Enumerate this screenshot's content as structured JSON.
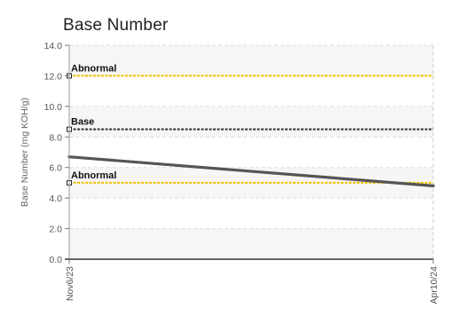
{
  "chart_data": {
    "type": "line",
    "title": "Base Number",
    "xlabel": "",
    "ylabel": "Base Number (mg KOH/g)",
    "ylim": [
      0,
      14
    ],
    "y_ticks": [
      "0.0",
      "2.0",
      "4.0",
      "6.0",
      "8.0",
      "10.0",
      "12.0",
      "14.0"
    ],
    "y_tick_values": [
      0,
      2,
      4,
      6,
      8,
      10,
      12,
      14
    ],
    "categories": [
      "Nov6/23",
      "Apr10/24"
    ],
    "series": [
      {
        "values": [
          6.7,
          4.8
        ],
        "color": "#555555"
      }
    ],
    "reference_lines": [
      {
        "label": "Abnormal",
        "value": 12.0,
        "color": "#f2c200"
      },
      {
        "label": "Base",
        "value": 8.5,
        "color": "#333333"
      },
      {
        "label": "Abnormal",
        "value": 5.0,
        "color": "#f2c200"
      }
    ],
    "grid": true,
    "band_color": "#f6f6f6"
  }
}
